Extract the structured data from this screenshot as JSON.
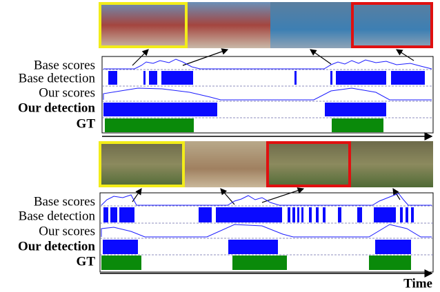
{
  "panels": [
    {
      "rows": [
        "Base scores",
        "Base detection",
        "Our scores",
        "Our detection",
        "GT"
      ]
    },
    {
      "rows": [
        "Base scores",
        "Base detection",
        "Our scores",
        "Our detection",
        "GT"
      ]
    }
  ],
  "time_label": "Time"
}
